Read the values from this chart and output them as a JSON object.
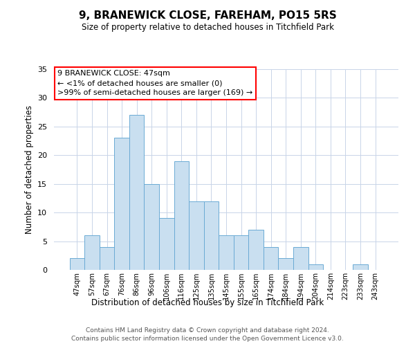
{
  "title": "9, BRANEWICK CLOSE, FAREHAM, PO15 5RS",
  "subtitle": "Size of property relative to detached houses in Titchfield Park",
  "xlabel": "Distribution of detached houses by size in Titchfield Park",
  "ylabel": "Number of detached properties",
  "bar_labels": [
    "47sqm",
    "57sqm",
    "67sqm",
    "76sqm",
    "86sqm",
    "96sqm",
    "106sqm",
    "116sqm",
    "125sqm",
    "135sqm",
    "145sqm",
    "155sqm",
    "165sqm",
    "174sqm",
    "184sqm",
    "194sqm",
    "204sqm",
    "214sqm",
    "223sqm",
    "233sqm",
    "243sqm"
  ],
  "bar_values": [
    2,
    6,
    4,
    23,
    27,
    15,
    9,
    19,
    12,
    12,
    6,
    6,
    7,
    4,
    2,
    4,
    1,
    0,
    0,
    1,
    0
  ],
  "bar_color": "#c9dff0",
  "bar_edge_color": "#6aaad4",
  "ylim": [
    0,
    35
  ],
  "yticks": [
    0,
    5,
    10,
    15,
    20,
    25,
    30,
    35
  ],
  "annotation_line1": "9 BRANEWICK CLOSE: 47sqm",
  "annotation_line2": "← <1% of detached houses are smaller (0)",
  "annotation_line3": ">99% of semi-detached houses are larger (169) →",
  "footer_line1": "Contains HM Land Registry data © Crown copyright and database right 2024.",
  "footer_line2": "Contains public sector information licensed under the Open Government Licence v3.0.",
  "background_color": "#ffffff",
  "grid_color": "#c8d4e8"
}
